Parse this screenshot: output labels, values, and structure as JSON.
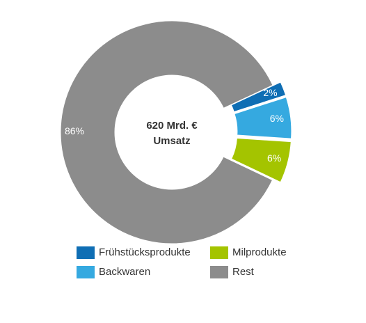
{
  "chart_data": {
    "type": "donut",
    "categories": [
      "Frühstücksprodukte",
      "Backwaren",
      "Milprodukte",
      "Rest"
    ],
    "values": [
      2,
      6,
      6,
      86
    ],
    "value_labels": [
      "2%",
      "6%",
      "6%",
      "86%"
    ],
    "colors": [
      "#0f6eb4",
      "#35a9e0",
      "#a4c400",
      "#8c8c8c"
    ],
    "center_text": [
      "620 Mrd. €",
      "Umsatz"
    ]
  }
}
